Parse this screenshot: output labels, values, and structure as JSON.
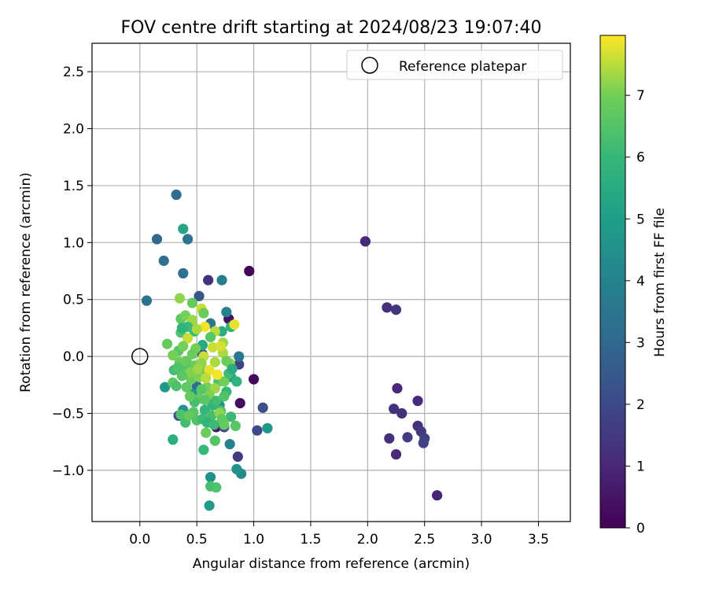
{
  "chart_data": {
    "type": "scatter",
    "title": "FOV centre drift starting at 2024/08/23 19:07:40",
    "xlabel": "Angular distance from reference (arcmin)",
    "ylabel": "Rotation from reference (arcmin)",
    "xlim": [
      -0.42,
      3.78
    ],
    "ylim": [
      -1.45,
      2.75
    ],
    "xticks": [
      "0.0",
      "0.5",
      "1.0",
      "1.5",
      "2.0",
      "2.5",
      "3.0",
      "3.5"
    ],
    "xtick_values": [
      0,
      0.5,
      1,
      1.5,
      2,
      2.5,
      3,
      3.5
    ],
    "yticks": [
      "−1.0",
      "−0.5",
      "0.0",
      "0.5",
      "1.0",
      "1.5",
      "2.0",
      "2.5"
    ],
    "ytick_values": [
      -1,
      -0.5,
      0,
      0.5,
      1,
      1.5,
      2,
      2.5
    ],
    "grid": true,
    "legend": {
      "placement": "top-right",
      "entries": [
        "Reference platepar"
      ]
    },
    "reference_point": {
      "x": 0,
      "y": 0,
      "label": "Reference platepar"
    },
    "colorbar": {
      "label": "Hours from first FF file",
      "range": [
        0,
        7.97
      ],
      "ticks": [
        "0",
        "1",
        "2",
        "3",
        "4",
        "5",
        "6",
        "7"
      ],
      "tick_values": [
        0,
        1,
        2,
        3,
        4,
        5,
        6,
        7
      ],
      "colormap": "viridis"
    },
    "points": [
      [
        1.98,
        1.01,
        1.0
      ],
      [
        2.17,
        0.43,
        1.2
      ],
      [
        2.25,
        0.41,
        1.4
      ],
      [
        2.26,
        -0.28,
        1.0
      ],
      [
        2.44,
        -0.39,
        1.1
      ],
      [
        2.23,
        -0.46,
        1.3
      ],
      [
        2.3,
        -0.5,
        1.2
      ],
      [
        2.44,
        -0.61,
        1.2
      ],
      [
        2.47,
        -0.66,
        1.5
      ],
      [
        2.5,
        -0.72,
        1.7
      ],
      [
        2.19,
        -0.72,
        1.2
      ],
      [
        2.35,
        -0.71,
        1.6
      ],
      [
        2.49,
        -0.76,
        1.8
      ],
      [
        2.25,
        -0.86,
        1.1
      ],
      [
        2.61,
        -1.22,
        0.9
      ],
      [
        0.96,
        0.75,
        0.1
      ],
      [
        1.0,
        -0.2,
        0.2
      ],
      [
        0.88,
        -0.41,
        0.3
      ],
      [
        0.6,
        0.67,
        1.3
      ],
      [
        0.78,
        0.33,
        0.4
      ],
      [
        0.67,
        -0.62,
        0.6
      ],
      [
        0.86,
        -0.88,
        1.6
      ],
      [
        0.74,
        -0.62,
        1.9
      ],
      [
        1.03,
        -0.65,
        2.0
      ],
      [
        1.08,
        -0.45,
        2.2
      ],
      [
        0.87,
        -0.07,
        1.8
      ],
      [
        0.55,
        0.02,
        2.1
      ],
      [
        0.52,
        0.53,
        2.4
      ],
      [
        0.42,
        -0.07,
        2.6
      ],
      [
        0.34,
        -0.52,
        2.3
      ],
      [
        0.32,
        1.42,
        3.2
      ],
      [
        0.15,
        1.03,
        3.1
      ],
      [
        0.42,
        1.03,
        3.4
      ],
      [
        0.21,
        0.84,
        3.3
      ],
      [
        0.38,
        0.73,
        3.3
      ],
      [
        0.06,
        0.49,
        3.4
      ],
      [
        0.72,
        0.67,
        3.9
      ],
      [
        0.87,
        0.0,
        3.6
      ],
      [
        0.45,
        0.28,
        3.0
      ],
      [
        0.62,
        0.29,
        3.5
      ],
      [
        0.76,
        0.39,
        4.0
      ],
      [
        0.5,
        -0.26,
        3.2
      ],
      [
        0.63,
        -0.4,
        3.6
      ],
      [
        0.79,
        -0.77,
        4.0
      ],
      [
        0.89,
        -1.03,
        4.2
      ],
      [
        0.85,
        -0.99,
        4.6
      ],
      [
        1.12,
        -0.63,
        4.8
      ],
      [
        0.62,
        -1.06,
        4.5
      ],
      [
        0.61,
        -1.31,
        4.9
      ],
      [
        0.38,
        -0.47,
        4.5
      ],
      [
        0.22,
        -0.27,
        4.7
      ],
      [
        0.46,
        -0.33,
        4.7
      ],
      [
        0.7,
        -0.43,
        4.6
      ],
      [
        0.8,
        -0.18,
        5.0
      ],
      [
        0.38,
        1.12,
        5.3
      ],
      [
        0.55,
        0.1,
        5.4
      ],
      [
        0.72,
        0.22,
        5.5
      ],
      [
        0.8,
        0.26,
        5.7
      ],
      [
        0.29,
        -0.73,
        5.6
      ],
      [
        0.56,
        -0.82,
        6.0
      ],
      [
        0.62,
        -1.14,
        6.3
      ],
      [
        0.67,
        -1.15,
        6.4
      ],
      [
        0.84,
        -0.61,
        6.6
      ],
      [
        0.66,
        -0.74,
        6.5
      ],
      [
        0.58,
        -0.67,
        6.9
      ],
      [
        0.4,
        -0.58,
        6.2
      ],
      [
        0.36,
        -0.51,
        6.4
      ],
      [
        0.47,
        -0.49,
        6.6
      ],
      [
        0.52,
        -0.37,
        6.7
      ],
      [
        0.57,
        -0.47,
        5.9
      ],
      [
        0.63,
        -0.52,
        6.3
      ],
      [
        0.71,
        -0.48,
        6.5
      ],
      [
        0.8,
        -0.53,
        6.1
      ],
      [
        0.76,
        -0.31,
        6.0
      ],
      [
        0.69,
        -0.22,
        6.4
      ],
      [
        0.58,
        -0.14,
        6.8
      ],
      [
        0.48,
        -0.08,
        6.9
      ],
      [
        0.4,
        -0.1,
        6.5
      ],
      [
        0.3,
        -0.12,
        6.2
      ],
      [
        0.29,
        -0.23,
        6.7
      ],
      [
        0.32,
        -0.26,
        6.4
      ],
      [
        0.45,
        -0.2,
        6.9
      ],
      [
        0.52,
        -0.18,
        7.1
      ],
      [
        0.59,
        -0.27,
        7.0
      ],
      [
        0.66,
        -0.28,
        7.3
      ],
      [
        0.74,
        -0.22,
        7.0
      ],
      [
        0.79,
        -0.06,
        7.2
      ],
      [
        0.73,
        0.03,
        7.4
      ],
      [
        0.64,
        0.08,
        7.6
      ],
      [
        0.56,
        0.0,
        7.6
      ],
      [
        0.49,
        0.07,
        7.0
      ],
      [
        0.41,
        -0.04,
        6.8
      ],
      [
        0.34,
        0.05,
        6.6
      ],
      [
        0.29,
        0.01,
        7.0
      ],
      [
        0.24,
        0.11,
        6.8
      ],
      [
        0.36,
        0.21,
        6.4
      ],
      [
        0.36,
        0.33,
        6.7
      ],
      [
        0.4,
        0.36,
        7.0
      ],
      [
        0.46,
        0.32,
        7.3
      ],
      [
        0.54,
        0.42,
        7.6
      ],
      [
        0.57,
        0.26,
        7.9
      ],
      [
        0.66,
        0.22,
        7.5
      ],
      [
        0.73,
        0.12,
        7.3
      ],
      [
        0.83,
        0.28,
        7.8
      ],
      [
        0.35,
        0.51,
        7.2
      ],
      [
        0.46,
        0.47,
        6.8
      ],
      [
        0.42,
        0.26,
        6.1
      ],
      [
        0.37,
        0.25,
        5.8
      ],
      [
        0.48,
        0.22,
        6.0
      ],
      [
        0.71,
        0.09,
        7.7
      ],
      [
        0.66,
        -0.05,
        7.4
      ],
      [
        0.68,
        -0.16,
        7.9
      ],
      [
        0.61,
        -0.12,
        7.8
      ],
      [
        0.54,
        -0.06,
        7.2
      ],
      [
        0.46,
        0.02,
        6.9
      ],
      [
        0.44,
        -0.14,
        7.1
      ],
      [
        0.51,
        -0.11,
        7.3
      ],
      [
        0.58,
        -0.19,
        7.5
      ],
      [
        0.61,
        -0.34,
        7.1
      ],
      [
        0.54,
        -0.29,
        6.6
      ],
      [
        0.48,
        -0.4,
        6.3
      ],
      [
        0.43,
        -0.52,
        6.8
      ],
      [
        0.5,
        -0.56,
        6.5
      ],
      [
        0.55,
        -0.55,
        6.1
      ],
      [
        0.64,
        -0.43,
        5.9
      ],
      [
        0.7,
        -0.5,
        7.2
      ],
      [
        0.72,
        -0.55,
        6.7
      ],
      [
        0.76,
        -0.04,
        6.9
      ],
      [
        0.78,
        -0.15,
        6.2
      ],
      [
        0.81,
        -0.11,
        5.5
      ],
      [
        0.85,
        -0.22,
        5.8
      ],
      [
        0.62,
        0.17,
        6.6
      ],
      [
        0.56,
        0.38,
        6.9
      ],
      [
        0.5,
        0.24,
        7.4
      ],
      [
        0.42,
        0.16,
        7.6
      ],
      [
        0.38,
        0.09,
        7.0
      ],
      [
        0.35,
        -0.05,
        6.9
      ],
      [
        0.33,
        -0.1,
        6.4
      ],
      [
        0.37,
        -0.17,
        6.6
      ],
      [
        0.41,
        -0.27,
        6.7
      ],
      [
        0.44,
        -0.35,
        6.8
      ],
      [
        0.57,
        -0.38,
        6.6
      ],
      [
        0.67,
        -0.39,
        6.2
      ],
      [
        0.74,
        -0.35,
        6.5
      ],
      [
        0.59,
        -0.58,
        5.8
      ],
      [
        0.65,
        -0.6,
        6.1
      ],
      [
        0.74,
        -0.6,
        6.8
      ]
    ]
  }
}
